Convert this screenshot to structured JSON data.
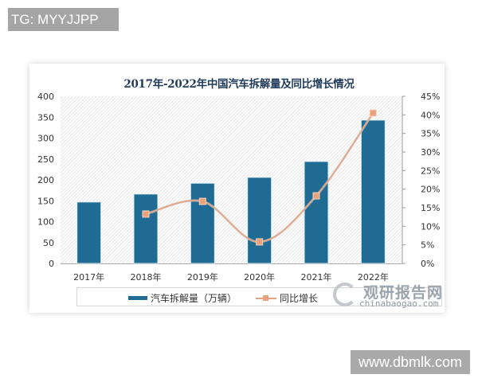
{
  "watermarks": {
    "top_left": "TG: MYYJJPP",
    "bottom_right": "www.dbmlk.com"
  },
  "logo": {
    "cn": "观研报告网",
    "en": "chinabaogao.com"
  },
  "chart_data": {
    "type": "bar+line",
    "title": "2017年-2022年中国汽车拆解量及同比增长情况",
    "categories": [
      "2017年",
      "2018年",
      "2019年",
      "2020年",
      "2021年",
      "2022年"
    ],
    "series": [
      {
        "name": "汽车拆解量（万辆）",
        "type": "bar",
        "axis": "left",
        "color": "#1f6b93",
        "values": [
          147,
          166,
          192,
          206,
          244,
          343
        ]
      },
      {
        "name": "同比增长",
        "type": "line",
        "axis": "right",
        "color": "#e8a27e",
        "values": [
          null,
          13.3,
          16.7,
          5.8,
          18.2,
          40.5
        ]
      }
    ],
    "y_left": {
      "ticks": [
        "0",
        "50",
        "100",
        "150",
        "200",
        "250",
        "300",
        "350",
        "400"
      ],
      "ylim": [
        0,
        400
      ]
    },
    "y_right": {
      "ticks": [
        "0%",
        "5%",
        "10%",
        "15%",
        "20%",
        "25%",
        "30%",
        "35%",
        "40%",
        "45%"
      ],
      "ylim": [
        0,
        45
      ]
    },
    "legend": [
      "汽车拆解量（万辆）",
      "同比增长"
    ],
    "legend_position": "bottom",
    "grid": false
  }
}
